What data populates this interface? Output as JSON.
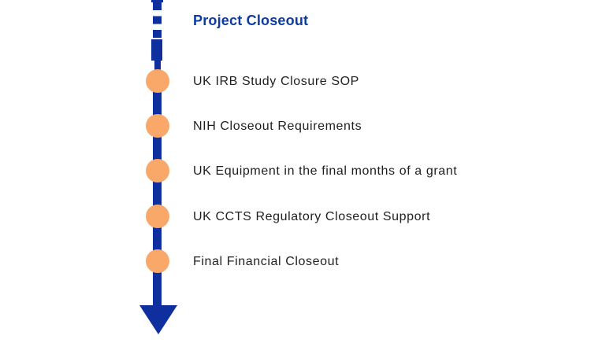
{
  "title": "Project Closeout",
  "timeline": {
    "items": [
      {
        "label": "UK IRB Study Closure SOP"
      },
      {
        "label": "NIH Closeout Requirements"
      },
      {
        "label": "UK Equipment in the final months of a grant"
      },
      {
        "label": "UK CCTS Regulatory Closeout Support"
      },
      {
        "label": "Final Financial Closeout"
      }
    ]
  },
  "icons": {
    "arrow": "down-arrow-icon"
  },
  "colors": {
    "line_navy": "#0E2F9D",
    "title_blue": "#0D3B9E",
    "node_orange": "#FAA869",
    "label_text": "#1F1F1F",
    "background": "#FFFFFF"
  }
}
